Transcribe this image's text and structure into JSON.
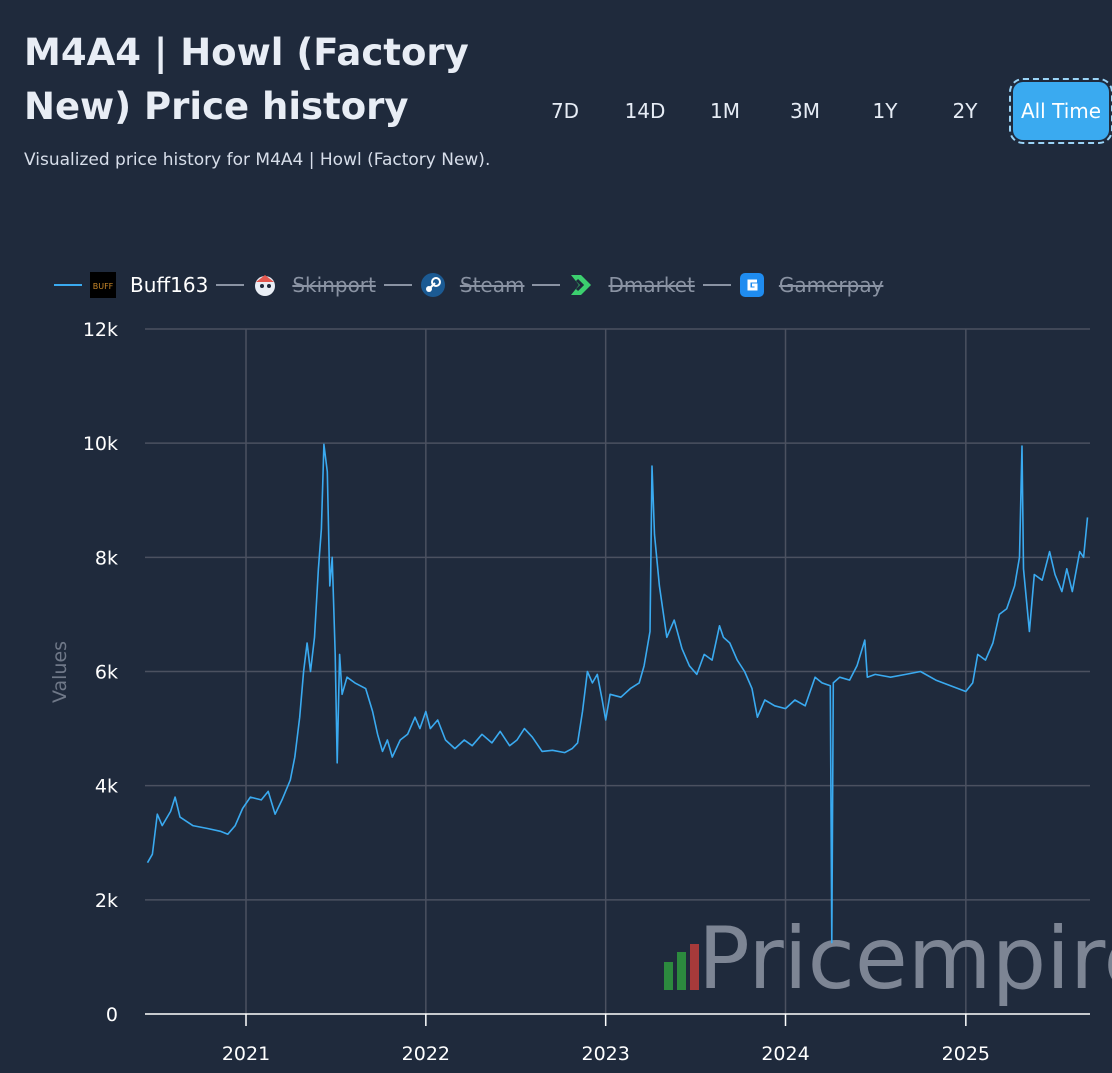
{
  "header": {
    "title": "M4A4 | Howl (Factory New) Price history",
    "subtitle": "Visualized price history for M4A4 | Howl (Factory New)."
  },
  "ranges": [
    {
      "label": "7D",
      "active": false
    },
    {
      "label": "14D",
      "active": false
    },
    {
      "label": "1M",
      "active": false
    },
    {
      "label": "3M",
      "active": false
    },
    {
      "label": "1Y",
      "active": false
    },
    {
      "label": "2Y",
      "active": false
    },
    {
      "label": "All Time",
      "active": true
    }
  ],
  "legend": [
    {
      "name": "Buff163",
      "enabled": true,
      "icon": "buff163-logo",
      "color": "#3aaaf0"
    },
    {
      "name": "Skinport",
      "enabled": false,
      "icon": "skinport-logo",
      "color": "#8a93a3"
    },
    {
      "name": "Steam",
      "enabled": false,
      "icon": "steam-logo",
      "color": "#8a93a3"
    },
    {
      "name": "Dmarket",
      "enabled": false,
      "icon": "dmarket-logo",
      "color": "#8a93a3"
    },
    {
      "name": "Gamerpay",
      "enabled": false,
      "icon": "gamerpay-logo",
      "color": "#8a93a3"
    }
  ],
  "watermark": "Pricempire",
  "colors": {
    "background": "#1f2a3c",
    "grid": "#4b5160",
    "line": "#3aaaf0",
    "accent": "#3aaaf0"
  },
  "chart_data": {
    "type": "line",
    "ylabel": "Values",
    "xlabel": "",
    "yticks": [
      "0",
      "2k",
      "4k",
      "6k",
      "8k",
      "10k",
      "12k"
    ],
    "ylim": [
      0,
      12000
    ],
    "xlim": [
      "2020-06-10",
      "2025-09-10"
    ],
    "xticks": [
      {
        "label": "2021",
        "date": "2021-01-01"
      },
      {
        "label": "2022",
        "date": "2022-01-01"
      },
      {
        "label": "2023",
        "date": "2023-01-01"
      },
      {
        "label": "2024",
        "date": "2024-01-01"
      },
      {
        "label": "2025",
        "date": "2025-01-01"
      }
    ],
    "grid": true,
    "legend_position": "top-left",
    "series": [
      {
        "name": "Buff163",
        "points": [
          [
            "2020-06-15",
            2650
          ],
          [
            "2020-06-25",
            2800
          ],
          [
            "2020-07-05",
            3500
          ],
          [
            "2020-07-15",
            3300
          ],
          [
            "2020-08-01",
            3550
          ],
          [
            "2020-08-10",
            3800
          ],
          [
            "2020-08-20",
            3450
          ],
          [
            "2020-09-15",
            3300
          ],
          [
            "2020-10-15",
            3250
          ],
          [
            "2020-11-10",
            3200
          ],
          [
            "2020-11-25",
            3150
          ],
          [
            "2020-12-10",
            3300
          ],
          [
            "2020-12-25",
            3600
          ],
          [
            "2021-01-10",
            3800
          ],
          [
            "2021-02-01",
            3750
          ],
          [
            "2021-02-15",
            3900
          ],
          [
            "2021-03-01",
            3500
          ],
          [
            "2021-03-15",
            3750
          ],
          [
            "2021-04-01",
            4100
          ],
          [
            "2021-04-10",
            4500
          ],
          [
            "2021-04-20",
            5200
          ],
          [
            "2021-04-28",
            6000
          ],
          [
            "2021-05-05",
            6500
          ],
          [
            "2021-05-12",
            6000
          ],
          [
            "2021-05-20",
            6600
          ],
          [
            "2021-05-28",
            7800
          ],
          [
            "2021-06-03",
            8500
          ],
          [
            "2021-06-08",
            9980
          ],
          [
            "2021-06-15",
            9500
          ],
          [
            "2021-06-20",
            7500
          ],
          [
            "2021-06-25",
            8000
          ],
          [
            "2021-07-01",
            6300
          ],
          [
            "2021-07-05",
            4400
          ],
          [
            "2021-07-10",
            6300
          ],
          [
            "2021-07-15",
            5600
          ],
          [
            "2021-07-25",
            5900
          ],
          [
            "2021-08-10",
            5800
          ],
          [
            "2021-09-01",
            5700
          ],
          [
            "2021-09-15",
            5300
          ],
          [
            "2021-09-25",
            4900
          ],
          [
            "2021-10-05",
            4600
          ],
          [
            "2021-10-15",
            4800
          ],
          [
            "2021-10-25",
            4500
          ],
          [
            "2021-11-10",
            4800
          ],
          [
            "2021-11-25",
            4900
          ],
          [
            "2021-12-10",
            5200
          ],
          [
            "2021-12-20",
            5000
          ],
          [
            "2022-01-01",
            5300
          ],
          [
            "2022-01-10",
            5000
          ],
          [
            "2022-01-25",
            5150
          ],
          [
            "2022-02-10",
            4800
          ],
          [
            "2022-03-01",
            4650
          ],
          [
            "2022-03-20",
            4800
          ],
          [
            "2022-04-05",
            4700
          ],
          [
            "2022-04-25",
            4900
          ],
          [
            "2022-05-15",
            4750
          ],
          [
            "2022-06-01",
            4950
          ],
          [
            "2022-06-20",
            4700
          ],
          [
            "2022-07-05",
            4800
          ],
          [
            "2022-07-20",
            5000
          ],
          [
            "2022-08-05",
            4850
          ],
          [
            "2022-08-25",
            4600
          ],
          [
            "2022-09-15",
            4620
          ],
          [
            "2022-10-10",
            4580
          ],
          [
            "2022-10-25",
            4650
          ],
          [
            "2022-11-05",
            4750
          ],
          [
            "2022-11-15",
            5300
          ],
          [
            "2022-11-25",
            6000
          ],
          [
            "2022-12-05",
            5800
          ],
          [
            "2022-12-15",
            5950
          ],
          [
            "2022-12-25",
            5500
          ],
          [
            "2023-01-01",
            5150
          ],
          [
            "2023-01-10",
            5600
          ],
          [
            "2023-02-01",
            5550
          ],
          [
            "2023-02-20",
            5700
          ],
          [
            "2023-03-10",
            5800
          ],
          [
            "2023-03-20",
            6100
          ],
          [
            "2023-04-01",
            6700
          ],
          [
            "2023-04-05",
            9600
          ],
          [
            "2023-04-10",
            8400
          ],
          [
            "2023-04-20",
            7500
          ],
          [
            "2023-05-05",
            6600
          ],
          [
            "2023-05-20",
            6900
          ],
          [
            "2023-06-05",
            6400
          ],
          [
            "2023-06-20",
            6100
          ],
          [
            "2023-07-05",
            5950
          ],
          [
            "2023-07-20",
            6300
          ],
          [
            "2023-08-05",
            6200
          ],
          [
            "2023-08-20",
            6800
          ],
          [
            "2023-08-28",
            6600
          ],
          [
            "2023-09-10",
            6500
          ],
          [
            "2023-09-25",
            6200
          ],
          [
            "2023-10-10",
            6000
          ],
          [
            "2023-10-25",
            5700
          ],
          [
            "2023-11-05",
            5200
          ],
          [
            "2023-11-20",
            5500
          ],
          [
            "2023-12-10",
            5400
          ],
          [
            "2024-01-01",
            5350
          ],
          [
            "2024-01-20",
            5500
          ],
          [
            "2024-02-10",
            5400
          ],
          [
            "2024-03-01",
            5900
          ],
          [
            "2024-03-15",
            5800
          ],
          [
            "2024-04-01",
            5750
          ],
          [
            "2024-04-04",
            1250
          ],
          [
            "2024-04-07",
            5800
          ],
          [
            "2024-04-20",
            5900
          ],
          [
            "2024-05-10",
            5850
          ],
          [
            "2024-05-25",
            6100
          ],
          [
            "2024-06-10",
            6550
          ],
          [
            "2024-06-15",
            5900
          ],
          [
            "2024-07-01",
            5950
          ],
          [
            "2024-08-01",
            5900
          ],
          [
            "2024-09-01",
            5950
          ],
          [
            "2024-10-01",
            6000
          ],
          [
            "2024-11-01",
            5850
          ],
          [
            "2024-12-01",
            5750
          ],
          [
            "2025-01-01",
            5650
          ],
          [
            "2025-01-15",
            5800
          ],
          [
            "2025-01-25",
            6300
          ],
          [
            "2025-02-10",
            6200
          ],
          [
            "2025-02-25",
            6500
          ],
          [
            "2025-03-10",
            7000
          ],
          [
            "2025-03-25",
            7100
          ],
          [
            "2025-04-10",
            7500
          ],
          [
            "2025-04-20",
            8000
          ],
          [
            "2025-04-25",
            9950
          ],
          [
            "2025-04-28",
            7800
          ],
          [
            "2025-05-10",
            6700
          ],
          [
            "2025-05-20",
            7700
          ],
          [
            "2025-06-05",
            7600
          ],
          [
            "2025-06-20",
            8100
          ],
          [
            "2025-07-01",
            7700
          ],
          [
            "2025-07-15",
            7400
          ],
          [
            "2025-07-25",
            7800
          ],
          [
            "2025-08-05",
            7400
          ],
          [
            "2025-08-20",
            8100
          ],
          [
            "2025-08-28",
            8000
          ],
          [
            "2025-09-05",
            8700
          ]
        ]
      }
    ]
  }
}
